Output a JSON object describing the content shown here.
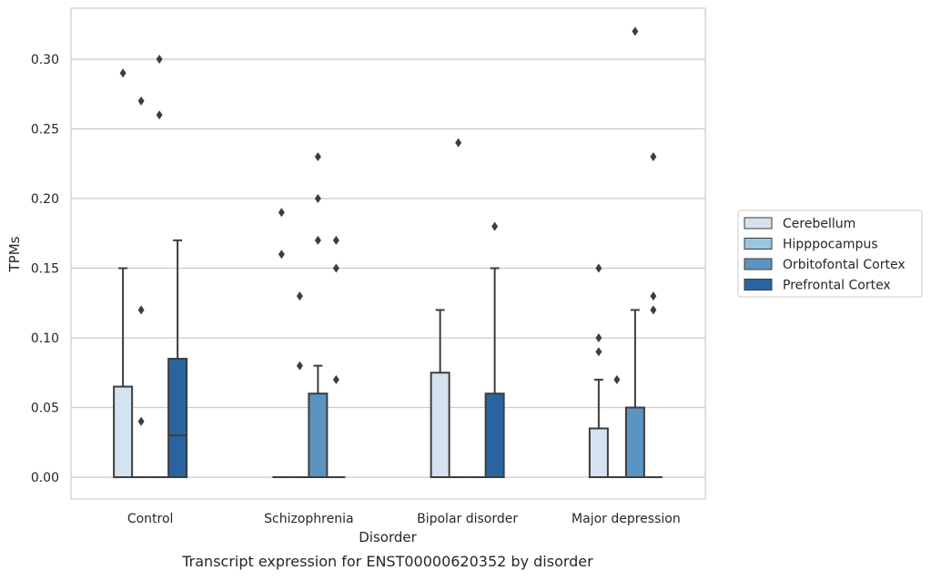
{
  "chart_data": {
    "type": "boxplot",
    "caption": "Transcript expression for ENST00000620352 by disorder",
    "xlabel": "Disorder",
    "ylabel": "TPMs",
    "ylim": [
      -0.015,
      0.337
    ],
    "yticks": [
      "0.00",
      "0.05",
      "0.10",
      "0.15",
      "0.20",
      "0.25",
      "0.30"
    ],
    "ytick_values": [
      0,
      0.05,
      0.1,
      0.15,
      0.2,
      0.25,
      0.3
    ],
    "categories": [
      "Control",
      "Schizophrenia",
      "Bipolar disorder",
      "Major depression"
    ],
    "grid": "horizontal",
    "legend_position": "center-right",
    "series": [
      {
        "name": "Cerebellum",
        "color": "#d5e3f0",
        "boxes": [
          {
            "q1": 0,
            "median": 0,
            "q3": 0.065,
            "whisker_low": 0,
            "whisker_high": 0.15,
            "outliers": [
              0.29
            ]
          },
          {
            "q1": 0,
            "median": 0,
            "q3": 0,
            "whisker_low": 0,
            "whisker_high": 0,
            "outliers": [
              0.19,
              0.16
            ]
          },
          {
            "q1": 0,
            "median": 0,
            "q3": 0.075,
            "whisker_low": 0,
            "whisker_high": 0.12,
            "outliers": []
          },
          {
            "q1": 0,
            "median": 0,
            "q3": 0.035,
            "whisker_low": 0,
            "whisker_high": 0.07,
            "outliers": [
              0.15,
              0.1,
              0.09
            ]
          }
        ]
      },
      {
        "name": "Hipppocampus",
        "color": "#9ac7e0",
        "boxes": [
          {
            "q1": 0,
            "median": 0,
            "q3": 0,
            "whisker_low": 0,
            "whisker_high": 0,
            "outliers": [
              0.27,
              0.12,
              0.04
            ]
          },
          {
            "q1": 0,
            "median": 0,
            "q3": 0,
            "whisker_low": 0,
            "whisker_high": 0,
            "outliers": [
              0.13,
              0.08
            ]
          },
          {
            "q1": 0,
            "median": 0,
            "q3": 0,
            "whisker_low": 0,
            "whisker_high": 0,
            "outliers": [
              0.24
            ]
          },
          {
            "q1": 0,
            "median": 0,
            "q3": 0,
            "whisker_low": 0,
            "whisker_high": 0,
            "outliers": [
              0.07
            ]
          }
        ]
      },
      {
        "name": "Orbitofontal Cortex",
        "color": "#5a95c2",
        "boxes": [
          {
            "q1": 0,
            "median": 0,
            "q3": 0,
            "whisker_low": 0,
            "whisker_high": 0,
            "outliers": [
              0.3,
              0.26
            ]
          },
          {
            "q1": 0,
            "median": 0,
            "q3": 0.06,
            "whisker_low": 0,
            "whisker_high": 0.08,
            "outliers": [
              0.23,
              0.2,
              0.17
            ]
          },
          {
            "q1": 0,
            "median": 0,
            "q3": 0,
            "whisker_low": 0,
            "whisker_high": 0,
            "outliers": []
          },
          {
            "q1": 0,
            "median": 0,
            "q3": 0.05,
            "whisker_low": 0,
            "whisker_high": 0.12,
            "outliers": [
              0.32
            ]
          }
        ]
      },
      {
        "name": "Prefrontal Cortex",
        "color": "#2a64a0",
        "boxes": [
          {
            "q1": 0,
            "median": 0.03,
            "q3": 0.085,
            "whisker_low": 0,
            "whisker_high": 0.17,
            "outliers": []
          },
          {
            "q1": 0,
            "median": 0,
            "q3": 0,
            "whisker_low": 0,
            "whisker_high": 0,
            "outliers": [
              0.17,
              0.15,
              0.07
            ]
          },
          {
            "q1": 0,
            "median": 0,
            "q3": 0.06,
            "whisker_low": 0,
            "whisker_high": 0.15,
            "outliers": [
              0.18
            ]
          },
          {
            "q1": 0,
            "median": 0,
            "q3": 0,
            "whisker_low": 0,
            "whisker_high": 0,
            "outliers": [
              0.23,
              0.13,
              0.12
            ]
          }
        ]
      }
    ]
  }
}
